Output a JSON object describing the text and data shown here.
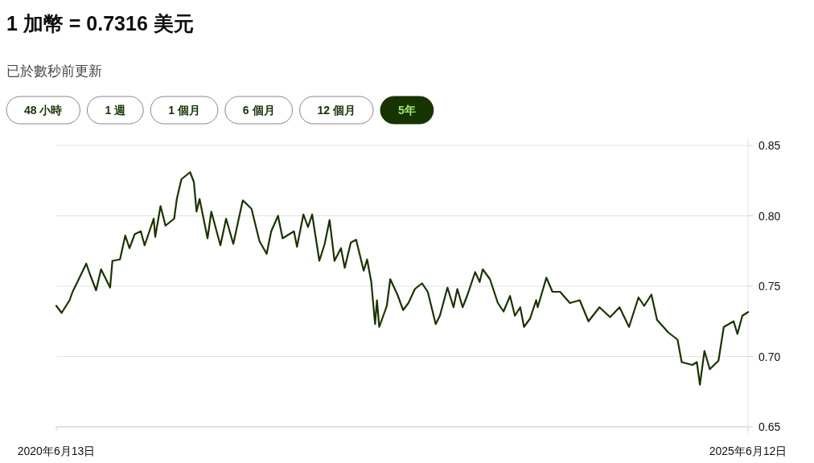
{
  "chart_data": {
    "type": "line",
    "title": "1 加幣 = 0.7316 美元",
    "subtitle": "已於數秒前更新",
    "annotations": [
      "48 小時",
      "1 週",
      "1 個月",
      "6 個月",
      "12 個月",
      "5年"
    ],
    "xlim": [
      "2020-06-13",
      "2025-06-12"
    ],
    "xticks": [
      {
        "value": "2020-06-13",
        "label": "2020年6月13日"
      },
      {
        "value": "2025-06-12",
        "label": "2025年6月12日"
      }
    ],
    "ylim": [
      0.65,
      0.85
    ],
    "yticks": [
      0.65,
      {
        "value": 0.7,
        "label": "0.70"
      },
      0.75,
      {
        "value": 0.8,
        "label": "0.80"
      },
      0.85
    ],
    "grid": "y",
    "line_style": "solid",
    "marker": "none",
    "series": [
      {
        "color": "#1a3300",
        "x": [
          "2020-06-13",
          "2020-06-27",
          "2020-07-18",
          "2020-07-26",
          "2020-08-06",
          "2020-08-31",
          "2020-09-09",
          "2020-09-26",
          "2020-10-09",
          "2020-11-02",
          "2020-11-08",
          "2020-11-28",
          "2020-12-12",
          "2020-12-23",
          "2021-01-06",
          "2021-01-22",
          "2021-02-01",
          "2021-02-25",
          "2021-03-01",
          "2021-03-15",
          "2021-03-28",
          "2021-04-20",
          "2021-04-27",
          "2021-05-09",
          "2021-06-01",
          "2021-06-11",
          "2021-06-18",
          "2021-06-26",
          "2021-07-17",
          "2021-07-27",
          "2021-08-20",
          "2021-09-04",
          "2021-09-23",
          "2021-10-05",
          "2021-10-18",
          "2021-11-10",
          "2021-12-01",
          "2021-12-20",
          "2022-01-01",
          "2022-01-19",
          "2022-01-31",
          "2022-03-02",
          "2022-03-10",
          "2022-03-27",
          "2022-04-08",
          "2022-04-19",
          "2022-05-08",
          "2022-05-22",
          "2022-06-04",
          "2022-06-17",
          "2022-07-04",
          "2022-07-14",
          "2022-07-30",
          "2022-08-13",
          "2022-09-02",
          "2022-09-11",
          "2022-09-22",
          "2022-10-02",
          "2022-10-07",
          "2022-10-13",
          "2022-11-02",
          "2022-11-11",
          "2022-11-30",
          "2022-12-15",
          "2022-12-29",
          "2023-01-15",
          "2023-02-03",
          "2023-02-18",
          "2023-03-11",
          "2023-03-22",
          "2023-04-11",
          "2023-04-27",
          "2023-05-07",
          "2023-05-21",
          "2023-06-03",
          "2023-06-23",
          "2023-07-05",
          "2023-07-13",
          "2023-08-01",
          "2023-08-22",
          "2023-09-06",
          "2023-09-23",
          "2023-10-06",
          "2023-10-20",
          "2023-10-30",
          "2023-11-15",
          "2023-12-01",
          "2023-12-05",
          "2023-12-28",
          "2024-01-13",
          "2024-02-02",
          "2024-02-28",
          "2024-03-25",
          "2024-04-17",
          "2024-05-16",
          "2024-06-13",
          "2024-07-08",
          "2024-08-02",
          "2024-08-27",
          "2024-09-11",
          "2024-09-30",
          "2024-10-15",
          "2024-11-14",
          "2024-12-08",
          "2024-12-19",
          "2025-01-16",
          "2025-01-28",
          "2025-02-05",
          "2025-02-17",
          "2025-03-03",
          "2025-03-26",
          "2025-04-09",
          "2025-05-05",
          "2025-05-15",
          "2025-05-28",
          "2025-06-12"
        ],
        "values": [
          0.736,
          0.731,
          0.74,
          0.746,
          0.752,
          0.766,
          0.759,
          0.747,
          0.762,
          0.749,
          0.768,
          0.769,
          0.786,
          0.777,
          0.787,
          0.789,
          0.779,
          0.798,
          0.785,
          0.807,
          0.793,
          0.798,
          0.812,
          0.826,
          0.831,
          0.824,
          0.803,
          0.812,
          0.784,
          0.803,
          0.779,
          0.798,
          0.78,
          0.795,
          0.811,
          0.805,
          0.782,
          0.773,
          0.789,
          0.8,
          0.784,
          0.789,
          0.778,
          0.801,
          0.792,
          0.801,
          0.768,
          0.78,
          0.797,
          0.768,
          0.777,
          0.763,
          0.781,
          0.783,
          0.761,
          0.769,
          0.753,
          0.723,
          0.74,
          0.721,
          0.736,
          0.755,
          0.744,
          0.733,
          0.738,
          0.748,
          0.752,
          0.746,
          0.723,
          0.729,
          0.749,
          0.735,
          0.748,
          0.735,
          0.744,
          0.76,
          0.753,
          0.762,
          0.755,
          0.738,
          0.732,
          0.743,
          0.729,
          0.735,
          0.721,
          0.727,
          0.74,
          0.735,
          0.756,
          0.746,
          0.746,
          0.738,
          0.74,
          0.725,
          0.735,
          0.728,
          0.735,
          0.721,
          0.742,
          0.736,
          0.744,
          0.726,
          0.717,
          0.712,
          0.696,
          0.694,
          0.696,
          0.68,
          0.704,
          0.691,
          0.697,
          0.721,
          0.725,
          0.716,
          0.729,
          0.7316
        ]
      }
    ]
  }
}
